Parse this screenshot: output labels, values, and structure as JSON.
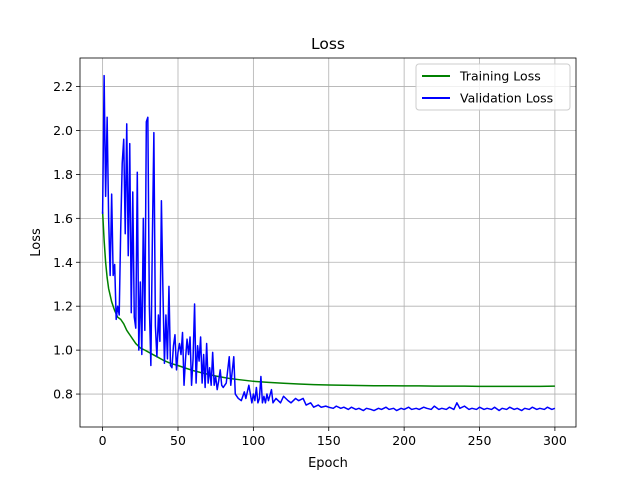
{
  "chart_data": {
    "type": "line",
    "title": "Loss",
    "xlabel": "Epoch",
    "ylabel": "Loss",
    "xlim": [
      -15,
      314
    ],
    "ylim": [
      0.65,
      2.33
    ],
    "xticks": [
      0,
      50,
      100,
      150,
      200,
      250,
      300
    ],
    "yticks": [
      0.8,
      1.0,
      1.2,
      1.4,
      1.6,
      1.8,
      2.0,
      2.2
    ],
    "grid": true,
    "legend_position": "top-right",
    "series": [
      {
        "name": "Training Loss",
        "color": "#008000",
        "points": [
          [
            0,
            1.63
          ],
          [
            1,
            1.5
          ],
          [
            2,
            1.4
          ],
          [
            3,
            1.33
          ],
          [
            4,
            1.28
          ],
          [
            5,
            1.25
          ],
          [
            6,
            1.22
          ],
          [
            7,
            1.2
          ],
          [
            8,
            1.18
          ],
          [
            10,
            1.15
          ],
          [
            12,
            1.14
          ],
          [
            14,
            1.12
          ],
          [
            16,
            1.09
          ],
          [
            18,
            1.07
          ],
          [
            20,
            1.05
          ],
          [
            22,
            1.03
          ],
          [
            25,
            1.01
          ],
          [
            28,
            1.0
          ],
          [
            32,
            0.985
          ],
          [
            36,
            0.97
          ],
          [
            40,
            0.955
          ],
          [
            45,
            0.94
          ],
          [
            50,
            0.93
          ],
          [
            55,
            0.918
          ],
          [
            60,
            0.907
          ],
          [
            65,
            0.898
          ],
          [
            70,
            0.89
          ],
          [
            75,
            0.882
          ],
          [
            80,
            0.876
          ],
          [
            85,
            0.87
          ],
          [
            90,
            0.866
          ],
          [
            95,
            0.862
          ],
          [
            100,
            0.858
          ],
          [
            110,
            0.853
          ],
          [
            120,
            0.849
          ],
          [
            130,
            0.846
          ],
          [
            140,
            0.843
          ],
          [
            150,
            0.841
          ],
          [
            160,
            0.84
          ],
          [
            170,
            0.839
          ],
          [
            180,
            0.838
          ],
          [
            190,
            0.838
          ],
          [
            200,
            0.837
          ],
          [
            210,
            0.837
          ],
          [
            220,
            0.836
          ],
          [
            230,
            0.836
          ],
          [
            240,
            0.836
          ],
          [
            250,
            0.835
          ],
          [
            260,
            0.835
          ],
          [
            270,
            0.835
          ],
          [
            280,
            0.835
          ],
          [
            290,
            0.835
          ],
          [
            300,
            0.836
          ]
        ]
      },
      {
        "name": "Validation Loss",
        "color": "#0000ff",
        "points": [
          [
            0,
            1.62
          ],
          [
            1,
            2.25
          ],
          [
            2,
            1.7
          ],
          [
            3,
            2.06
          ],
          [
            4,
            1.6
          ],
          [
            5,
            1.34
          ],
          [
            6,
            1.71
          ],
          [
            7,
            1.34
          ],
          [
            8,
            1.39
          ],
          [
            9,
            1.14
          ],
          [
            10,
            1.2
          ],
          [
            11,
            1.16
          ],
          [
            12,
            1.55
          ],
          [
            13,
            1.85
          ],
          [
            14,
            1.96
          ],
          [
            15,
            1.53
          ],
          [
            16,
            2.03
          ],
          [
            17,
            1.43
          ],
          [
            18,
            1.94
          ],
          [
            19,
            1.17
          ],
          [
            20,
            1.72
          ],
          [
            21,
            1.15
          ],
          [
            22,
            1.1
          ],
          [
            23,
            1.81
          ],
          [
            24,
            1.0
          ],
          [
            25,
            1.31
          ],
          [
            26,
            0.98
          ],
          [
            27,
            1.6
          ],
          [
            28,
            1.09
          ],
          [
            29,
            2.04
          ],
          [
            30,
            2.06
          ],
          [
            31,
            1.2
          ],
          [
            32,
            0.93
          ],
          [
            33,
            1.5
          ],
          [
            34,
            1.99
          ],
          [
            35,
            1.11
          ],
          [
            36,
            0.97
          ],
          [
            37,
            1.16
          ],
          [
            38,
            1.04
          ],
          [
            39,
            1.68
          ],
          [
            40,
            1.27
          ],
          [
            41,
            0.94
          ],
          [
            42,
            1.16
          ],
          [
            43,
            0.96
          ],
          [
            44,
            1.29
          ],
          [
            45,
            0.93
          ],
          [
            46,
            0.92
          ],
          [
            47,
            1.02
          ],
          [
            48,
            1.07
          ],
          [
            49,
            0.91
          ],
          [
            50,
            0.99
          ],
          [
            51,
            1.03
          ],
          [
            52,
            0.98
          ],
          [
            53,
            1.08
          ],
          [
            54,
            0.84
          ],
          [
            55,
            0.96
          ],
          [
            56,
            1.05
          ],
          [
            57,
            0.98
          ],
          [
            58,
            1.06
          ],
          [
            59,
            0.84
          ],
          [
            60,
            0.96
          ],
          [
            61,
            1.21
          ],
          [
            62,
            0.85
          ],
          [
            63,
            1.02
          ],
          [
            64,
            0.95
          ],
          [
            65,
            1.06
          ],
          [
            66,
            0.85
          ],
          [
            67,
            0.98
          ],
          [
            68,
            0.83
          ],
          [
            69,
            1.03
          ],
          [
            70,
            0.85
          ],
          [
            71,
            0.92
          ],
          [
            72,
            0.84
          ],
          [
            73,
            0.99
          ],
          [
            74,
            0.84
          ],
          [
            75,
            0.88
          ],
          [
            76,
            0.82
          ],
          [
            77,
            0.86
          ],
          [
            78,
            0.91
          ],
          [
            79,
            0.84
          ],
          [
            80,
            0.83
          ],
          [
            82,
            0.85
          ],
          [
            84,
            0.97
          ],
          [
            85,
            0.84
          ],
          [
            87,
            0.97
          ],
          [
            88,
            0.8
          ],
          [
            90,
            0.78
          ],
          [
            92,
            0.77
          ],
          [
            94,
            0.81
          ],
          [
            95,
            0.78
          ],
          [
            97,
            0.84
          ],
          [
            98,
            0.8
          ],
          [
            99,
            0.76
          ],
          [
            100,
            0.8
          ],
          [
            101,
            0.77
          ],
          [
            102,
            0.83
          ],
          [
            103,
            0.76
          ],
          [
            104,
            0.78
          ],
          [
            105,
            0.88
          ],
          [
            106,
            0.76
          ],
          [
            107,
            0.79
          ],
          [
            108,
            0.76
          ],
          [
            109,
            0.8
          ],
          [
            110,
            0.77
          ],
          [
            112,
            0.82
          ],
          [
            113,
            0.76
          ],
          [
            115,
            0.78
          ],
          [
            118,
            0.76
          ],
          [
            120,
            0.79
          ],
          [
            123,
            0.77
          ],
          [
            125,
            0.76
          ],
          [
            128,
            0.78
          ],
          [
            130,
            0.77
          ],
          [
            133,
            0.78
          ],
          [
            135,
            0.75
          ],
          [
            138,
            0.76
          ],
          [
            140,
            0.74
          ],
          [
            143,
            0.75
          ],
          [
            145,
            0.74
          ],
          [
            148,
            0.745
          ],
          [
            150,
            0.74
          ],
          [
            153,
            0.735
          ],
          [
            155,
            0.745
          ],
          [
            158,
            0.735
          ],
          [
            160,
            0.74
          ],
          [
            163,
            0.73
          ],
          [
            165,
            0.74
          ],
          [
            168,
            0.73
          ],
          [
            170,
            0.735
          ],
          [
            173,
            0.725
          ],
          [
            175,
            0.735
          ],
          [
            178,
            0.73
          ],
          [
            180,
            0.725
          ],
          [
            183,
            0.735
          ],
          [
            185,
            0.73
          ],
          [
            188,
            0.74
          ],
          [
            190,
            0.73
          ],
          [
            193,
            0.735
          ],
          [
            195,
            0.725
          ],
          [
            198,
            0.735
          ],
          [
            200,
            0.73
          ],
          [
            203,
            0.74
          ],
          [
            205,
            0.73
          ],
          [
            208,
            0.735
          ],
          [
            210,
            0.73
          ],
          [
            213,
            0.74
          ],
          [
            215,
            0.735
          ],
          [
            218,
            0.73
          ],
          [
            220,
            0.745
          ],
          [
            223,
            0.73
          ],
          [
            225,
            0.735
          ],
          [
            228,
            0.73
          ],
          [
            230,
            0.74
          ],
          [
            233,
            0.73
          ],
          [
            235,
            0.76
          ],
          [
            237,
            0.735
          ],
          [
            240,
            0.745
          ],
          [
            243,
            0.73
          ],
          [
            245,
            0.735
          ],
          [
            248,
            0.73
          ],
          [
            250,
            0.74
          ],
          [
            253,
            0.73
          ],
          [
            255,
            0.735
          ],
          [
            258,
            0.73
          ],
          [
            260,
            0.74
          ],
          [
            263,
            0.725
          ],
          [
            265,
            0.735
          ],
          [
            268,
            0.73
          ],
          [
            270,
            0.74
          ],
          [
            273,
            0.73
          ],
          [
            275,
            0.735
          ],
          [
            278,
            0.725
          ],
          [
            280,
            0.735
          ],
          [
            283,
            0.73
          ],
          [
            285,
            0.74
          ],
          [
            288,
            0.73
          ],
          [
            290,
            0.735
          ],
          [
            293,
            0.73
          ],
          [
            295,
            0.74
          ],
          [
            298,
            0.73
          ],
          [
            300,
            0.735
          ]
        ]
      }
    ]
  }
}
